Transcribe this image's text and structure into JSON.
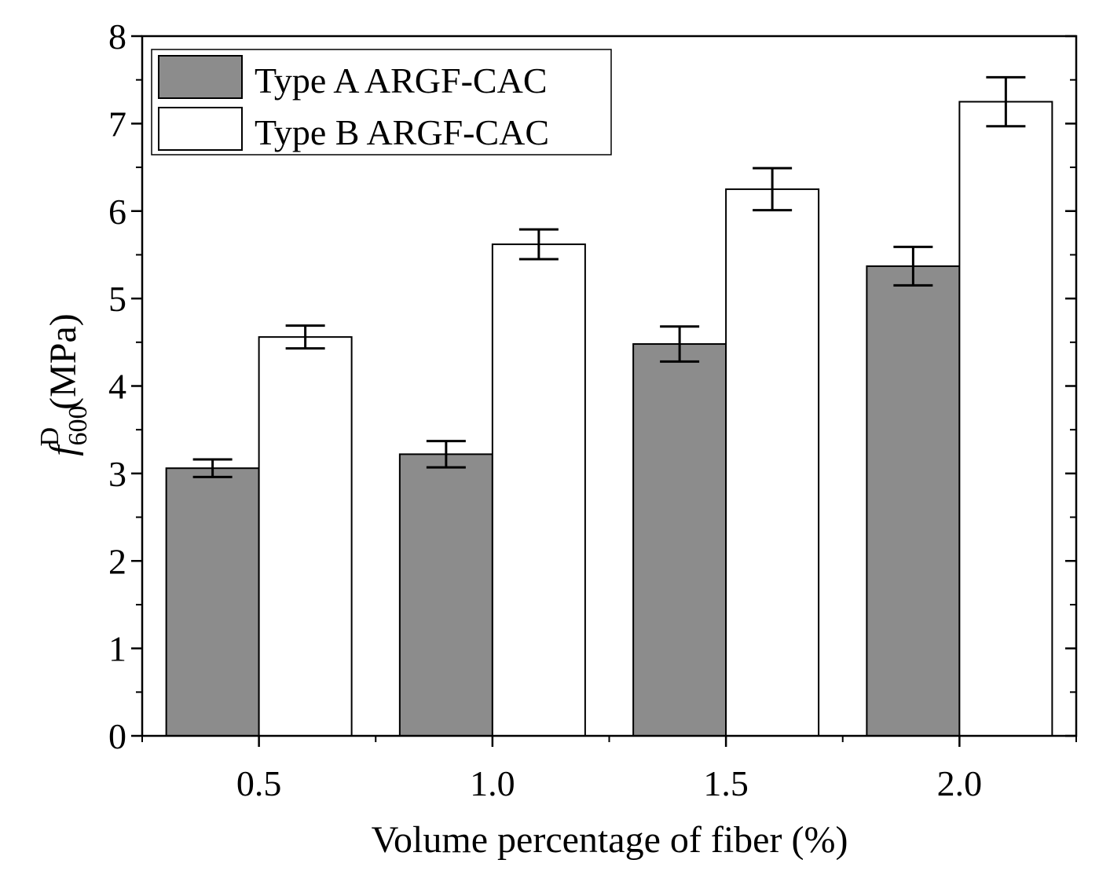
{
  "chart_data": {
    "type": "bar",
    "title": "",
    "xlabel": "Volume percentage of fiber (%)",
    "ylabel": {
      "symbol": "f",
      "superscript": "D",
      "subscript": "600",
      "unit": "(MPa)"
    },
    "categories": [
      "0.5",
      "1.0",
      "1.5",
      "2.0"
    ],
    "ylim": [
      0,
      8
    ],
    "yticks": [
      "0",
      "1",
      "2",
      "3",
      "4",
      "5",
      "6",
      "7",
      "8"
    ],
    "legend_position": "top-left",
    "series": [
      {
        "name": "Type A ARGF-CAC",
        "color": "#8c8c8c",
        "values": [
          3.06,
          3.22,
          4.48,
          5.37
        ],
        "errors": [
          0.1,
          0.15,
          0.2,
          0.22
        ]
      },
      {
        "name": "Type B ARGF-CAC",
        "color": "#ffffff",
        "values": [
          4.56,
          5.62,
          6.25,
          7.25
        ],
        "errors": [
          0.13,
          0.17,
          0.24,
          0.28
        ]
      }
    ]
  }
}
